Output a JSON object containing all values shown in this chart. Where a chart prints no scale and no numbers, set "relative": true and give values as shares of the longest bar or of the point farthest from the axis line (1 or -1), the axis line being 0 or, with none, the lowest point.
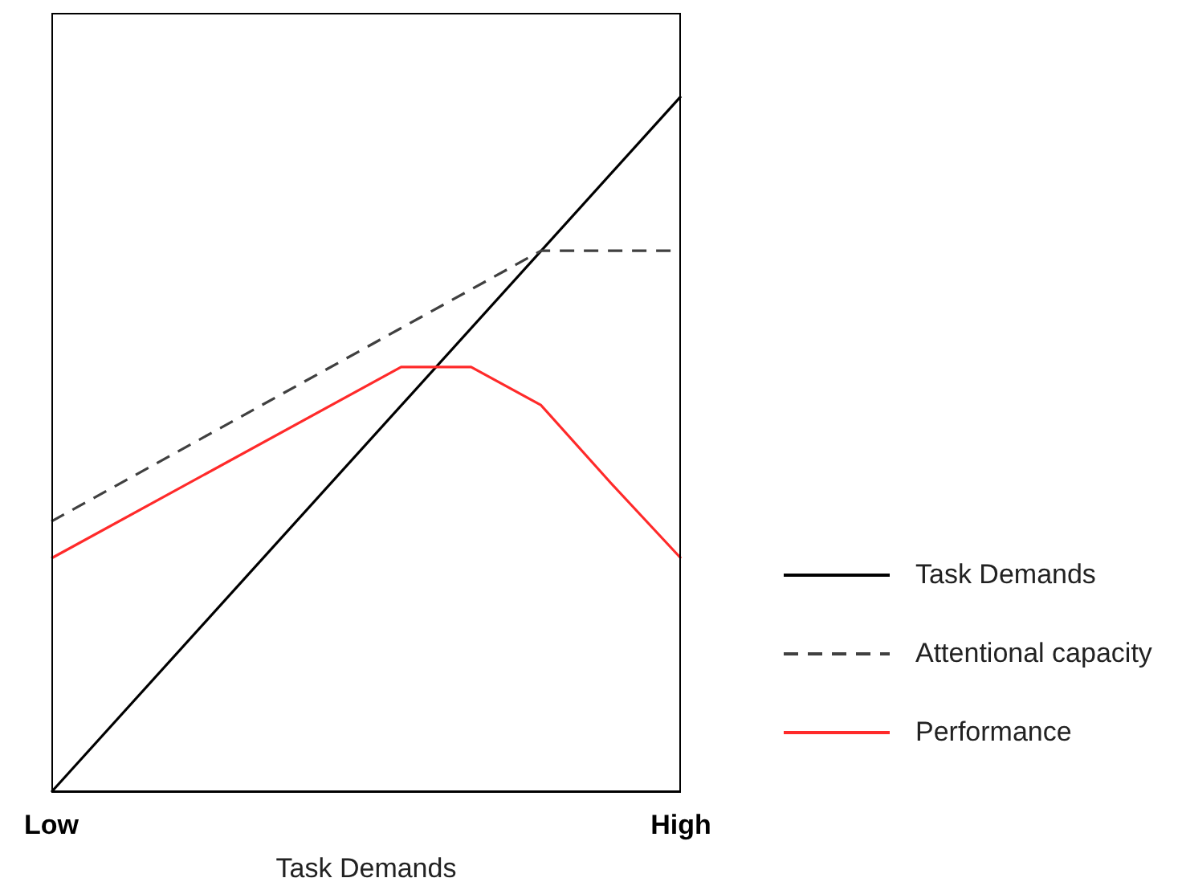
{
  "chart_data": {
    "type": "line",
    "relative": true,
    "xlabel": "Task Demands",
    "categories": [
      "Low",
      null,
      null,
      null,
      null,
      null,
      null,
      null,
      null,
      "High"
    ],
    "legend": "right",
    "marker": "none",
    "series": [
      {
        "name": "Task Demands",
        "color": "#000000",
        "line_style": "solid",
        "values": [
          0,
          null,
          null,
          null,
          null,
          null,
          null,
          null,
          null,
          1
        ]
      },
      {
        "name": "Attentional capacity",
        "color": "#404040",
        "line_style": "dashed",
        "values": [
          0.389,
          null,
          null,
          null,
          null,
          null,
          null,
          0.778,
          null,
          0.778
        ]
      },
      {
        "name": "Performance",
        "color": "#ff2a2a",
        "line_style": "solid",
        "values": [
          0.336,
          null,
          null,
          null,
          null,
          0.611,
          0.611,
          0.556,
          0.444,
          0.336
        ]
      }
    ]
  }
}
